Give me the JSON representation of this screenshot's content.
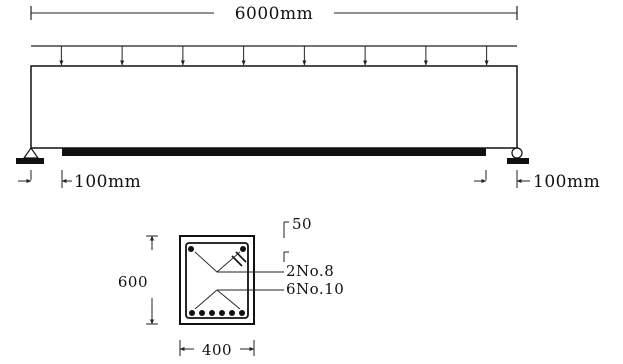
{
  "beam": {
    "span_label": "6000mm",
    "left_offset_label": "100mm",
    "right_offset_label": "100mm",
    "load_arrow_count": 8
  },
  "section": {
    "depth_label": "600",
    "width_label": "400",
    "cover_label": "50",
    "top_bars_label": "2No.8",
    "bottom_bars_label": "6No.10"
  }
}
